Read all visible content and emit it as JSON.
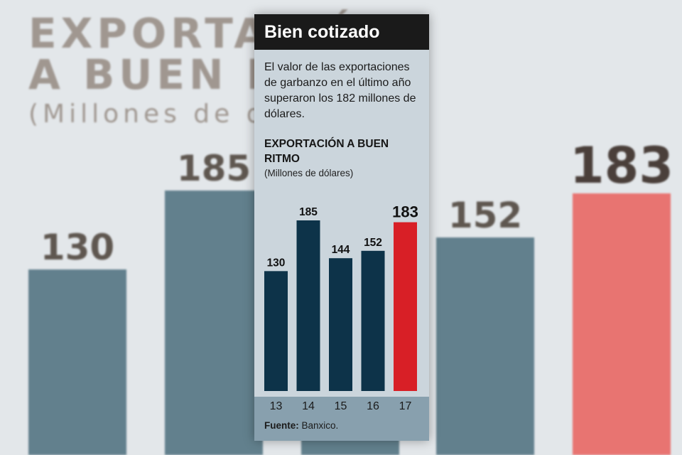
{
  "background": {
    "title_line1": "EXPORTACIÓN",
    "title_line2": "A BUEN RITMO",
    "subtitle": "(Millones de dólares)",
    "bars": [
      {
        "label": "130",
        "value": 130
      },
      {
        "label": "185",
        "value": 185
      },
      {
        "label": "144",
        "value": 144
      },
      {
        "label": "152",
        "value": 152
      },
      {
        "label": "183",
        "value": 183
      }
    ],
    "colors": {
      "bar": "#62808d",
      "highlight": "#e87471",
      "background": "#e3e7ea"
    }
  },
  "card": {
    "header": "Bien cotizado",
    "description": "El valor de las exportaciones de garbanzo en el último año superaron los 182 millones de dólares.",
    "source_label": "Fuente:",
    "source_value": "Banxico."
  },
  "chart_data": {
    "type": "bar",
    "title": "EXPORTACIÓN A BUEN RITMO",
    "subtitle": "(Millones de dólares)",
    "categories": [
      "13",
      "14",
      "15",
      "16",
      "17"
    ],
    "values": [
      130,
      185,
      144,
      152,
      183
    ],
    "data_labels": [
      "130",
      "185",
      "144",
      "152",
      "183"
    ],
    "highlight_index": 4,
    "colors": {
      "bar": "#0d3349",
      "highlight": "#d81f26"
    },
    "ylim": [
      0,
      185
    ],
    "grid": false,
    "legend": "none"
  }
}
